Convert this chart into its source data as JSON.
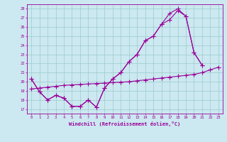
{
  "xlabel": "Windchill (Refroidissement éolien,°C)",
  "xlim": [
    -0.5,
    23.5
  ],
  "ylim": [
    16.5,
    28.5
  ],
  "yticks": [
    17,
    18,
    19,
    20,
    21,
    22,
    23,
    24,
    25,
    26,
    27,
    28
  ],
  "xticks": [
    0,
    1,
    2,
    3,
    4,
    5,
    6,
    7,
    8,
    9,
    10,
    11,
    12,
    13,
    14,
    15,
    16,
    17,
    18,
    19,
    20,
    21,
    22,
    23
  ],
  "bg_color": "#cce8f0",
  "line_color": "#990099",
  "grid_color": "#99cccc",
  "line1_y": [
    20.3,
    18.9,
    18.0,
    18.5,
    18.2,
    17.3,
    17.3,
    18.0,
    17.2,
    19.3,
    20.3,
    21.0,
    22.2,
    23.0,
    24.5,
    25.0,
    26.3,
    26.8,
    27.8,
    27.2,
    23.2,
    21.8,
    null,
    null
  ],
  "line2_y": [
    20.3,
    18.9,
    18.0,
    18.5,
    18.2,
    17.3,
    17.3,
    18.0,
    17.2,
    19.3,
    20.3,
    21.0,
    22.2,
    23.0,
    24.5,
    25.0,
    26.3,
    27.5,
    28.0,
    27.2,
    23.2,
    21.8,
    null,
    null
  ],
  "line3_y": [
    19.2,
    19.3,
    19.4,
    19.5,
    19.6,
    19.65,
    19.7,
    19.75,
    19.8,
    19.85,
    19.9,
    19.95,
    20.0,
    20.1,
    20.2,
    20.3,
    20.4,
    20.5,
    20.6,
    20.7,
    20.8,
    21.0,
    21.3,
    21.6
  ]
}
